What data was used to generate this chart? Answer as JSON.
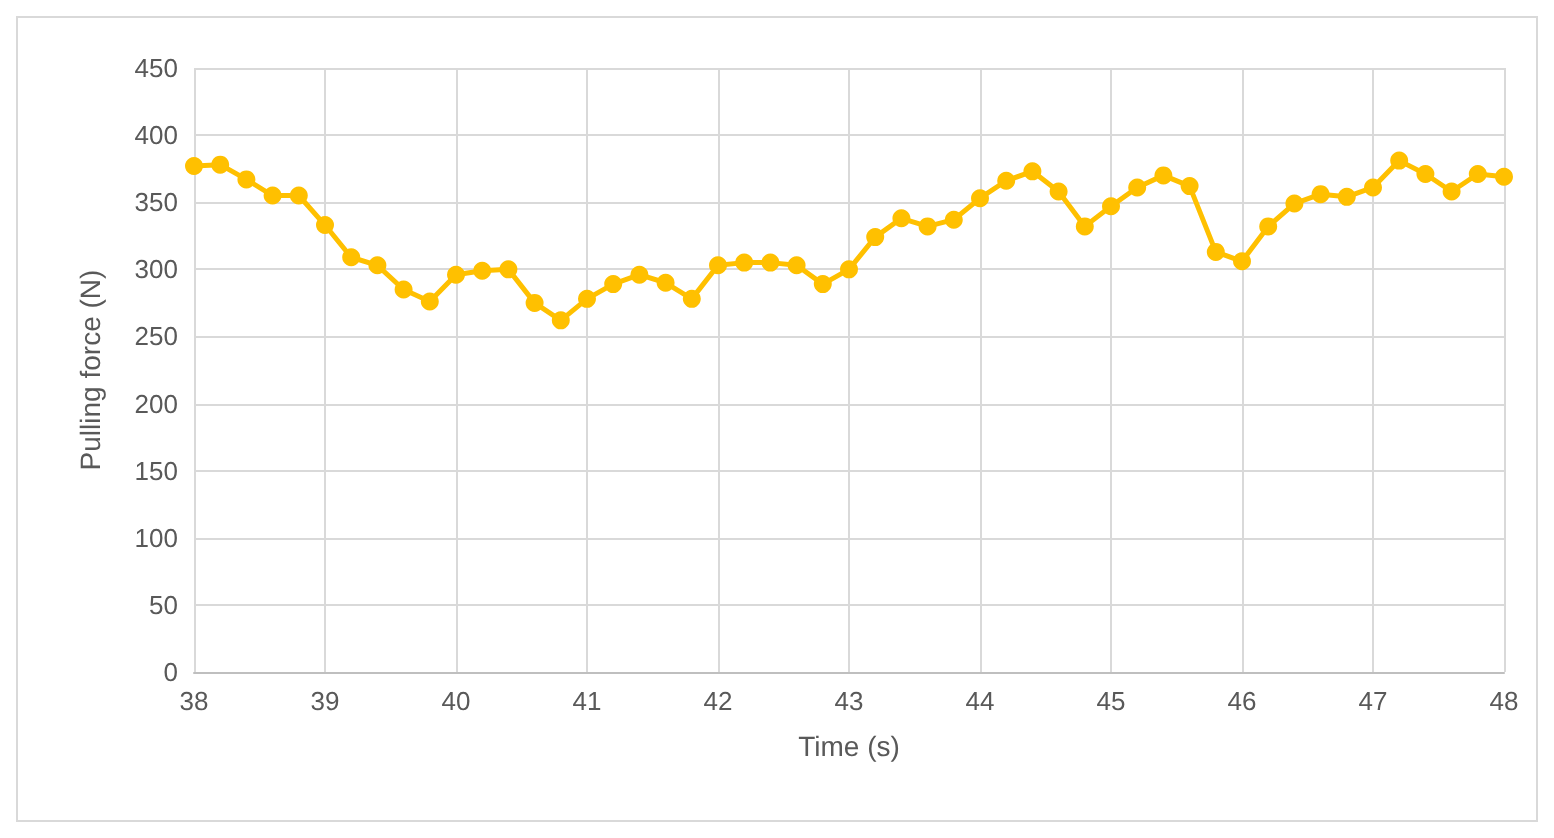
{
  "chart_data": {
    "type": "line",
    "xlabel": "Time (s)",
    "ylabel": "Pulling force (N)",
    "marker": "circle",
    "line_style": "solid",
    "grid": true,
    "x": [
      38,
      38.2,
      38.4,
      38.6,
      38.8,
      39,
      39.2,
      39.4,
      39.6,
      39.8,
      40,
      40.2,
      40.4,
      40.6,
      40.8,
      41,
      41.2,
      41.4,
      41.6,
      41.8,
      42,
      42.2,
      42.4,
      42.6,
      42.8,
      43,
      43.2,
      43.4,
      43.6,
      43.8,
      44,
      44.2,
      44.4,
      44.6,
      44.8,
      45,
      45.2,
      45.4,
      45.6,
      45.8,
      46,
      46.2,
      46.4,
      46.6,
      46.8,
      47,
      47.2,
      47.4,
      47.6,
      47.8,
      48
    ],
    "series": [
      {
        "color": "#ffc000",
        "values": [
          377,
          378,
          367,
          355,
          355,
          333,
          309,
          303,
          285,
          276,
          296,
          299,
          300,
          275,
          262,
          278,
          289,
          296,
          290,
          278,
          303,
          305,
          305,
          303,
          289,
          300,
          324,
          338,
          332,
          337,
          353,
          366,
          373,
          358,
          332,
          347,
          361,
          370,
          362,
          313,
          306,
          332,
          349,
          356,
          354,
          361,
          381,
          371,
          358,
          371,
          369
        ]
      }
    ],
    "xlim": [
      38,
      48
    ],
    "xticks": [
      38,
      39,
      40,
      41,
      42,
      43,
      44,
      45,
      46,
      47,
      48
    ],
    "ylim": [
      0,
      450
    ],
    "yticks": [
      0,
      50,
      100,
      150,
      200,
      250,
      300,
      350,
      400,
      450
    ]
  }
}
